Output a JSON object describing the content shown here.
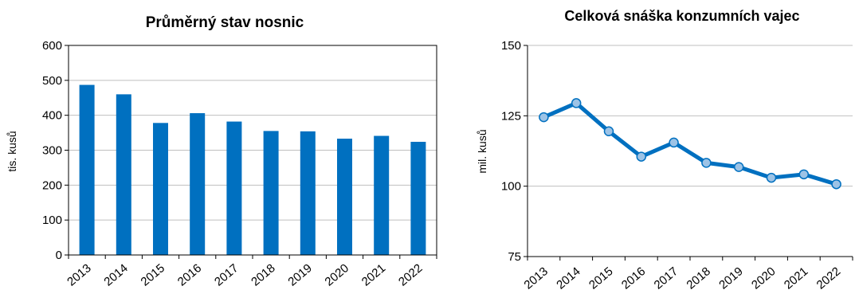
{
  "chart_data": [
    {
      "type": "bar",
      "title": "Průměrný stav nosnic",
      "xlabel": "",
      "ylabel": "tis. kusů",
      "categories": [
        "2013",
        "2014",
        "2015",
        "2016",
        "2017",
        "2018",
        "2019",
        "2020",
        "2021",
        "2022"
      ],
      "values": [
        487,
        460,
        378,
        406,
        382,
        355,
        354,
        333,
        341,
        324
      ],
      "ylim": [
        0,
        600
      ],
      "yticks": [
        0,
        100,
        200,
        300,
        400,
        500,
        600
      ],
      "grid": true,
      "color": "#0070C0"
    },
    {
      "type": "line",
      "title": "Celková snáška konzumních vajec",
      "xlabel": "",
      "ylabel": "mil. kusů",
      "categories": [
        "2013",
        "2014",
        "2015",
        "2016",
        "2017",
        "2018",
        "2019",
        "2020",
        "2021",
        "2022"
      ],
      "values": [
        124.5,
        129.5,
        119.5,
        110.5,
        115.5,
        108.3,
        106.8,
        103.0,
        104.2,
        100.7
      ],
      "ylim": [
        75,
        150
      ],
      "yticks": [
        75,
        100,
        125,
        150
      ],
      "grid": true,
      "color": "#0070C0",
      "marker_fill": "#9DC3E6"
    }
  ]
}
